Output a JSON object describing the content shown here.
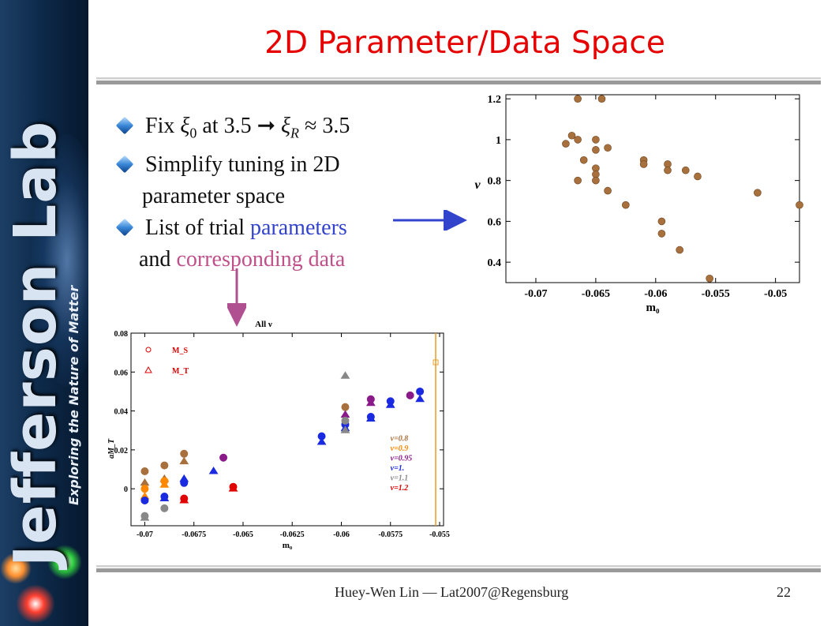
{
  "slide": {
    "title": "2D Parameter/Data Space",
    "bullets": [
      {
        "pre": "Fix ",
        "sym": "ξ",
        "sub": "0",
        "mid": " at 3.5 ➞ ",
        "sym2": "ξ",
        "sub2": "R",
        "post": " ≈ 3.5"
      },
      {
        "line1": "Simplify tuning in 2D",
        "line2": "parameter space"
      },
      {
        "pre": "List of trial ",
        "highlight": "parameters"
      }
    ],
    "continuation": {
      "pre": "and ",
      "highlight": "corresponding data"
    },
    "footer": {
      "author": "Huey-Wen Lin — Lat2007@Regensburg",
      "page": "22"
    },
    "sidebar": {
      "brand": "Jefferson Lab",
      "tagline": "Exploring the Nature of Matter"
    }
  },
  "colors": {
    "title": "#e60000",
    "params": "#3344cc",
    "data": "#c0508a",
    "arrow_blue": "#3344cc",
    "arrow_pink": "#b05090"
  },
  "chart_data": [
    {
      "type": "scatter",
      "xlabel": "m₀",
      "ylabel": "ν",
      "xlim": [
        -0.0725,
        -0.048
      ],
      "ylim": [
        0.3,
        1.22
      ],
      "xticks": [
        "-0.07",
        "-0.065",
        "-0.06",
        "-0.055",
        "-0.05"
      ],
      "xtick_values": [
        -0.07,
        -0.065,
        -0.06,
        -0.055,
        -0.05
      ],
      "yticks": [
        "0.4",
        "0.6",
        "0.8",
        "1",
        "1.2"
      ],
      "ytick_values": [
        0.4,
        0.6,
        0.8,
        1.0,
        1.2
      ],
      "color": "#a8703c",
      "points": [
        [
          -0.0675,
          0.98
        ],
        [
          -0.067,
          1.02
        ],
        [
          -0.0665,
          1.2
        ],
        [
          -0.0665,
          1.0
        ],
        [
          -0.0665,
          0.8
        ],
        [
          -0.066,
          0.9
        ],
        [
          -0.065,
          1.0
        ],
        [
          -0.065,
          0.95
        ],
        [
          -0.065,
          0.86
        ],
        [
          -0.065,
          0.83
        ],
        [
          -0.065,
          0.8
        ],
        [
          -0.0645,
          1.2
        ],
        [
          -0.064,
          0.96
        ],
        [
          -0.064,
          0.75
        ],
        [
          -0.0625,
          0.68
        ],
        [
          -0.061,
          0.9
        ],
        [
          -0.061,
          0.88
        ],
        [
          -0.0595,
          0.6
        ],
        [
          -0.0595,
          0.54
        ],
        [
          -0.059,
          0.88
        ],
        [
          -0.059,
          0.85
        ],
        [
          -0.058,
          0.46
        ],
        [
          -0.0575,
          0.85
        ],
        [
          -0.0565,
          0.82
        ],
        [
          -0.0555,
          0.32
        ],
        [
          -0.0515,
          0.74
        ],
        [
          -0.048,
          0.68
        ]
      ]
    },
    {
      "type": "scatter",
      "title": "All ν",
      "xlabel": "m₀",
      "ylabel": "aM_T",
      "xlim": [
        -0.0707,
        -0.0548
      ],
      "ylim": [
        -0.019,
        0.08
      ],
      "xticks": [
        "-0.07",
        "-0.0675",
        "-0.065",
        "-0.0625",
        "-0.06",
        "-0.0575",
        "-0.055"
      ],
      "xtick_values": [
        -0.07,
        -0.0675,
        -0.065,
        -0.0625,
        -0.06,
        -0.0575,
        -0.055
      ],
      "yticks": [
        "0",
        "0.02",
        "0.04",
        "0.06",
        "0.08"
      ],
      "ytick_values": [
        0,
        0.02,
        0.04,
        0.06,
        0.08
      ],
      "marker_legend": [
        {
          "label": "M_S",
          "marker": "circle"
        },
        {
          "label": "M_T",
          "marker": "triangle"
        }
      ],
      "vline": -0.0552,
      "series": [
        {
          "name": "ν=0.8",
          "color": "#a8703c",
          "points": [
            [
              -0.07,
              0.009
            ],
            [
              -0.07,
              0.003
            ],
            [
              -0.069,
              0.012
            ],
            [
              -0.069,
              0.005
            ],
            [
              -0.068,
              0.018
            ],
            [
              -0.068,
              0.014
            ],
            [
              -0.0598,
              0.042
            ]
          ]
        },
        {
          "name": "ν=0.9",
          "color": "#ff8800",
          "points": [
            [
              -0.07,
              0.0
            ],
            [
              -0.07,
              -0.004
            ],
            [
              -0.069,
              0.004
            ],
            [
              -0.069,
              0.002
            ]
          ]
        },
        {
          "name": "ν=0.95",
          "color": "#8a1a8a",
          "points": [
            [
              -0.066,
              0.016
            ],
            [
              -0.0598,
              0.038
            ],
            [
              -0.0585,
              0.046
            ],
            [
              -0.0585,
              0.044
            ],
            [
              -0.0565,
              0.048
            ]
          ]
        },
        {
          "name": "ν=1.",
          "color": "#1a2ae0",
          "points": [
            [
              -0.07,
              -0.006
            ],
            [
              -0.069,
              -0.005
            ],
            [
              -0.069,
              -0.004
            ],
            [
              -0.068,
              0.005
            ],
            [
              -0.068,
              0.003
            ],
            [
              -0.0665,
              0.009
            ],
            [
              -0.061,
              0.027
            ],
            [
              -0.061,
              0.024
            ],
            [
              -0.0598,
              0.033
            ],
            [
              -0.0598,
              0.031
            ],
            [
              -0.0585,
              0.037
            ],
            [
              -0.0585,
              0.036
            ],
            [
              -0.0575,
              0.045
            ],
            [
              -0.0575,
              0.043
            ],
            [
              -0.056,
              0.05
            ],
            [
              -0.056,
              0.046
            ]
          ]
        },
        {
          "name": "ν=1.1",
          "color": "#888888",
          "points": [
            [
              -0.07,
              -0.014
            ],
            [
              -0.07,
              -0.015
            ],
            [
              -0.069,
              -0.01
            ],
            [
              -0.0598,
              0.058
            ],
            [
              -0.0598,
              0.035
            ],
            [
              -0.0598,
              0.03
            ]
          ]
        },
        {
          "name": "ν=1.2",
          "color": "#e00000",
          "points": [
            [
              -0.068,
              -0.005
            ],
            [
              -0.068,
              -0.006
            ],
            [
              -0.0655,
              0.001
            ],
            [
              -0.0655,
              0.0
            ]
          ]
        }
      ],
      "extra_points": [
        {
          "x": -0.0552,
          "y": 0.065,
          "color": "#e8a030"
        }
      ]
    }
  ]
}
